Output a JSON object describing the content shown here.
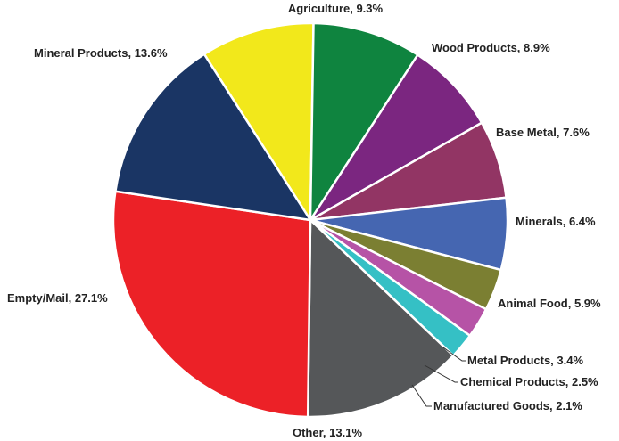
{
  "chart_data": {
    "type": "pie",
    "title": "",
    "series": [
      {
        "slices": [
          {
            "label": "Agriculture, 9.3%",
            "value": 9.3,
            "color": "#f2e81b"
          },
          {
            "label": "Wood Products, 8.9%",
            "value": 8.9,
            "color": "#0f843f"
          },
          {
            "label": "Base Metal, 7.6%",
            "value": 7.6,
            "color": "#7b2680"
          },
          {
            "label": "Minerals, 6.4%",
            "value": 6.4,
            "color": "#923564"
          },
          {
            "label": "Animal Food, 5.9%",
            "value": 5.9,
            "color": "#4566b1"
          },
          {
            "label": "Metal Products, 3.4%",
            "value": 3.4,
            "color": "#7b7f32"
          },
          {
            "label": "Chemical Products, 2.5%",
            "value": 2.5,
            "color": "#b653a6"
          },
          {
            "label": "Manufactured Goods, 2.1%",
            "value": 2.1,
            "color": "#35c0c5"
          },
          {
            "label": "Other, 13.1%",
            "value": 13.1,
            "color": "#555759"
          },
          {
            "label": "Empty/Mail, 27.1%",
            "value": 27.1,
            "color": "#ec2127"
          },
          {
            "label": "Mineral Products, 13.6%",
            "value": 13.6,
            "color": "#1a3564"
          }
        ]
      }
    ]
  }
}
